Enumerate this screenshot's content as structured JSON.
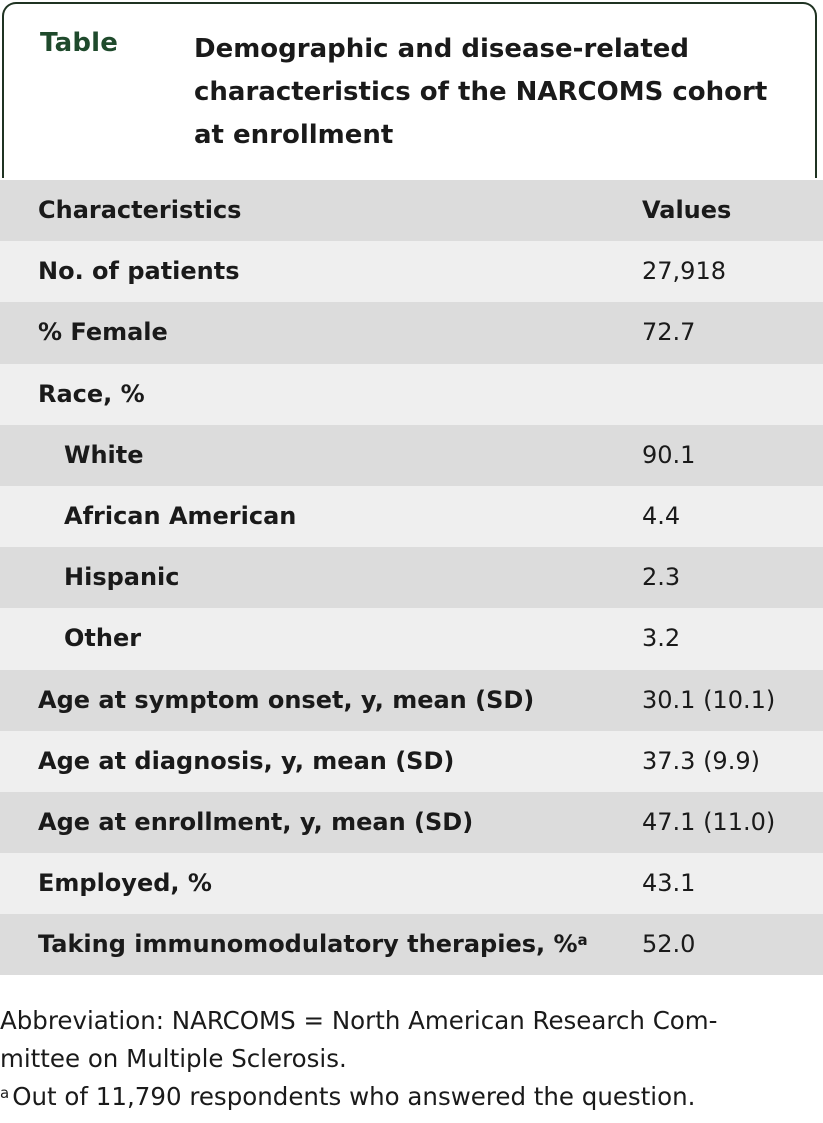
{
  "caption": {
    "label": "Table",
    "title_lines": [
      "Demographic and disease-related",
      "characteristics of the NARCOMS cohort",
      "at enrollment"
    ]
  },
  "table": {
    "headers": {
      "label": "Characteristics",
      "value": "Values"
    },
    "rows": [
      {
        "label": "No. of patients",
        "value": "27,918"
      },
      {
        "label": "% Female",
        "value": "72.7"
      },
      {
        "label": "Race, %",
        "value": ""
      },
      {
        "label": "White",
        "value": "90.1"
      },
      {
        "label": "African American",
        "value": "4.4"
      },
      {
        "label": "Hispanic",
        "value": "2.3"
      },
      {
        "label": "Other",
        "value": "3.2"
      },
      {
        "label": "Age at symptom onset, y, mean (SD)",
        "value": "30.1 (10.1)"
      },
      {
        "label": "Age at diagnosis, y, mean (SD)",
        "value": "37.3 (9.9)"
      },
      {
        "label": "Age at enrollment, y, mean (SD)",
        "value": "47.1 (11.0)"
      },
      {
        "label": "Employed, %",
        "value": "43.1"
      },
      {
        "label": "Taking immunomodulatory therapies, %",
        "sup": "a",
        "value": "52.0"
      }
    ]
  },
  "footnotes": {
    "abbreviation_line1": "Abbreviation: NARCOMS = North American Research Com-",
    "abbreviation_line2": "mittee on Multiple Sclerosis.",
    "note_marker": "a",
    "note_text": "Out of 11,790 respondents who answered the question."
  }
}
